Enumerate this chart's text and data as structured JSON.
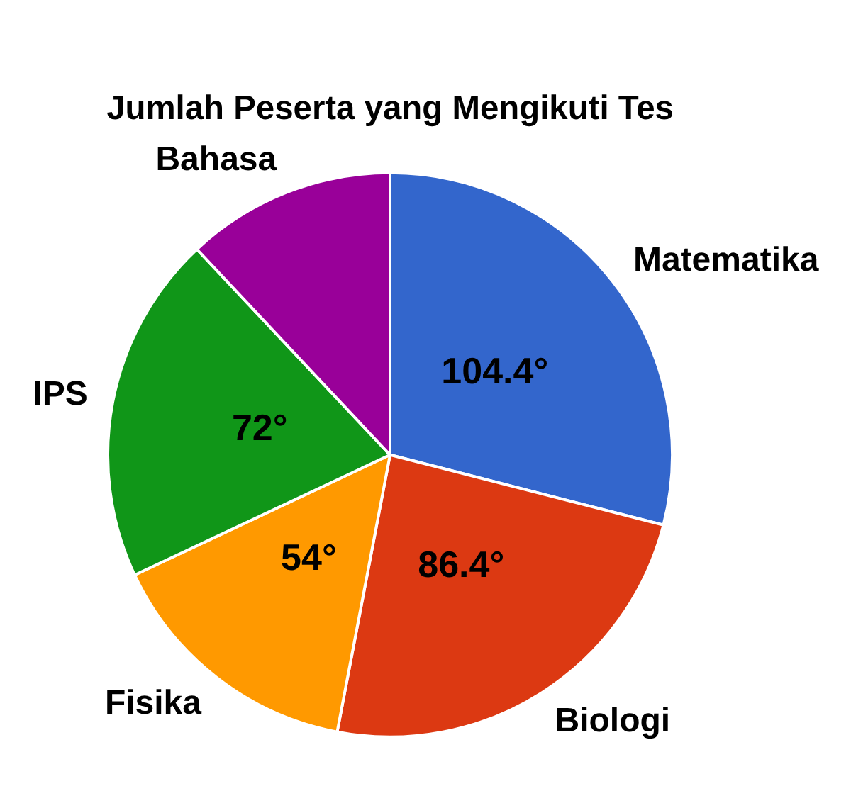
{
  "chart_data": {
    "type": "pie",
    "title": "Jumlah Peserta yang Mengikuti Tes",
    "categories": [
      "Matematika",
      "Biologi",
      "Fisika",
      "IPS",
      "Bahasa"
    ],
    "values": [
      104.4,
      86.4,
      54,
      72,
      43.2
    ],
    "value_labels": [
      "104.4°",
      "86.4°",
      "54°",
      "72°",
      null
    ],
    "colors": [
      "#3366cc",
      "#dc3912",
      "#ff9900",
      "#109618",
      "#990099"
    ],
    "legend": false
  }
}
